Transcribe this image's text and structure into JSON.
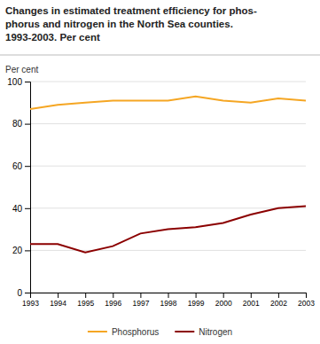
{
  "chart_data": {
    "type": "line",
    "title": "Changes in estimated treatment efficiency for phos-\nphorus and nitrogen in the North Sea counties.\n1993-2003. Per cent",
    "ylabel": "Per cent",
    "x": [
      1993,
      1994,
      1995,
      1996,
      1997,
      1998,
      1999,
      2000,
      2001,
      2002,
      2003
    ],
    "series": [
      {
        "name": "Phosphorus",
        "color": "#f5a623",
        "values": [
          87,
          89,
          90,
          91,
          91,
          91,
          93,
          91,
          90,
          92,
          91
        ]
      },
      {
        "name": "Nitrogen",
        "color": "#8b0000",
        "values": [
          23,
          23,
          19,
          22,
          28,
          30,
          31,
          33,
          37,
          40,
          41
        ]
      }
    ],
    "xlim": [
      1993,
      2003
    ],
    "xticks": [
      1993,
      1994,
      1995,
      1996,
      1997,
      1998,
      1999,
      2000,
      2001,
      2002,
      2003
    ],
    "ylim": [
      0,
      100
    ],
    "yticks": [
      0,
      20,
      40,
      60,
      80,
      100
    ],
    "grid": true,
    "legend": "bottom"
  }
}
